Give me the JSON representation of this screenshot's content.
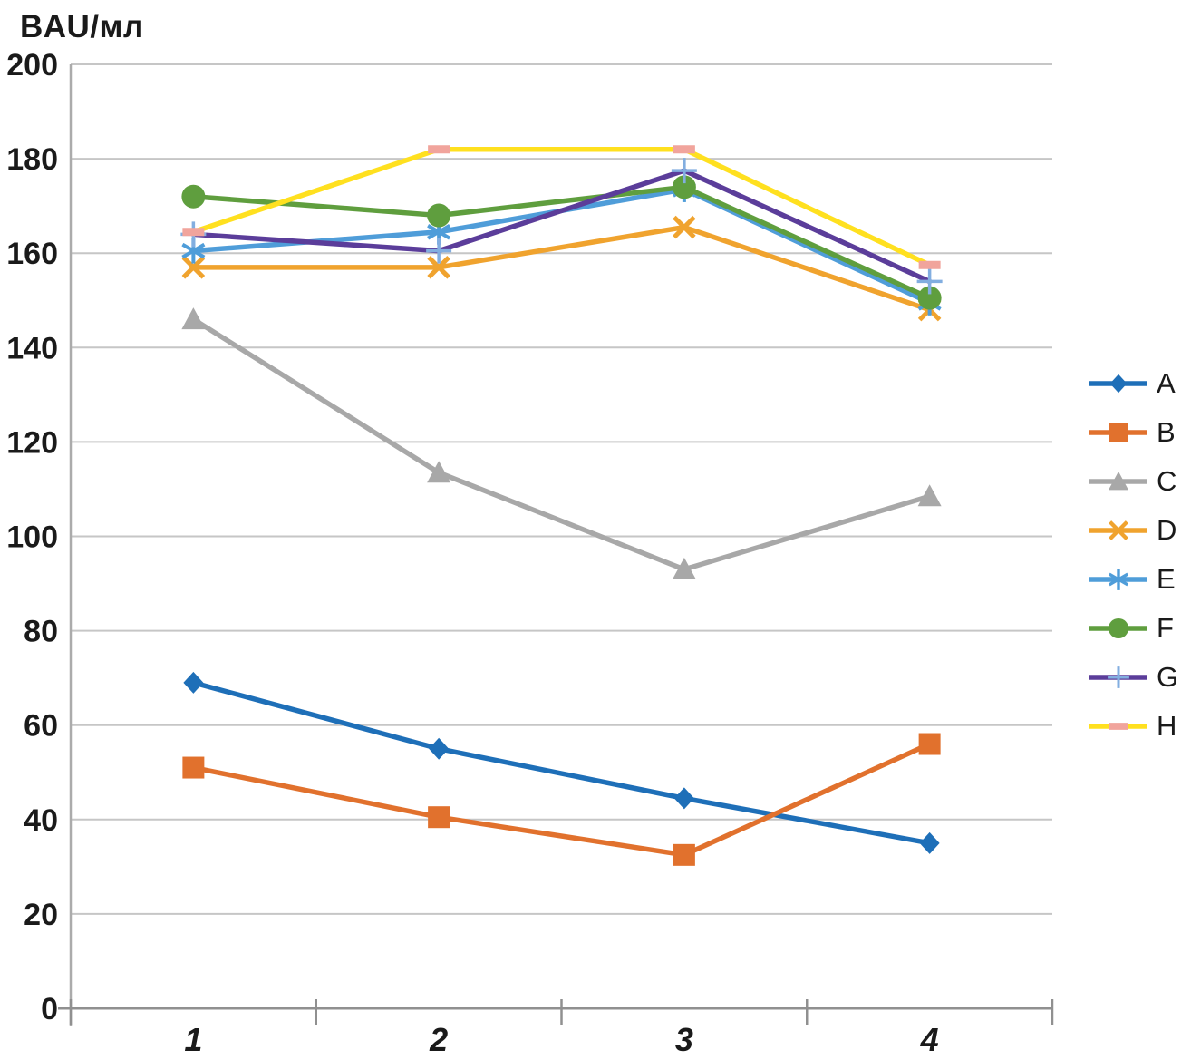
{
  "chart_data": {
    "type": "line",
    "title": "BAU/мл",
    "categories": [
      "1",
      "2",
      "3",
      "4"
    ],
    "series": [
      {
        "name": "A",
        "color": "#1E6FB8",
        "marker": "diamond",
        "marker_color": "#1E6FB8",
        "values": [
          69,
          55,
          44.5,
          35
        ]
      },
      {
        "name": "B",
        "color": "#E1712D",
        "marker": "square",
        "marker_color": "#E1712D",
        "values": [
          51,
          40.5,
          32.5,
          56
        ]
      },
      {
        "name": "C",
        "color": "#A8A8A8",
        "marker": "triangle",
        "marker_color": "#A8A8A8",
        "values": [
          146,
          113.5,
          93,
          108.5
        ]
      },
      {
        "name": "D",
        "color": "#F0A32E",
        "marker": "x",
        "marker_color": "#F0A32E",
        "values": [
          157,
          157,
          165.5,
          148
        ]
      },
      {
        "name": "E",
        "color": "#4F9DD9",
        "marker": "asterisk",
        "marker_color": "#4F9DD9",
        "values": [
          160.5,
          164.5,
          173.5,
          149.5
        ]
      },
      {
        "name": "F",
        "color": "#5F9E3E",
        "marker": "circle",
        "marker_color": "#5F9E3E",
        "values": [
          172,
          168,
          174,
          150.5
        ]
      },
      {
        "name": "G",
        "color": "#5B3D9A",
        "marker": "plus",
        "marker_color": "#82AEE0",
        "values": [
          164,
          160.5,
          177.5,
          154
        ]
      },
      {
        "name": "H",
        "color": "#FFE01F",
        "marker": "dash",
        "marker_color": "#F1A49C",
        "values": [
          164.5,
          182,
          182,
          157.5
        ]
      }
    ],
    "ylim": [
      0,
      200
    ],
    "ytick_step": 20,
    "ytick_labels": [
      "0",
      "20",
      "40",
      "60",
      "80",
      "100",
      "120",
      "140",
      "160",
      "180",
      "200"
    ],
    "xtick_labels": [
      "1",
      "2",
      "3",
      "4"
    ],
    "grid": true,
    "legend_position": "right",
    "colors": {
      "gridline": "#C6C6C6",
      "axis": "#909090",
      "yaxis_line": "#ABABAB",
      "text": "#1a1a1a"
    }
  }
}
